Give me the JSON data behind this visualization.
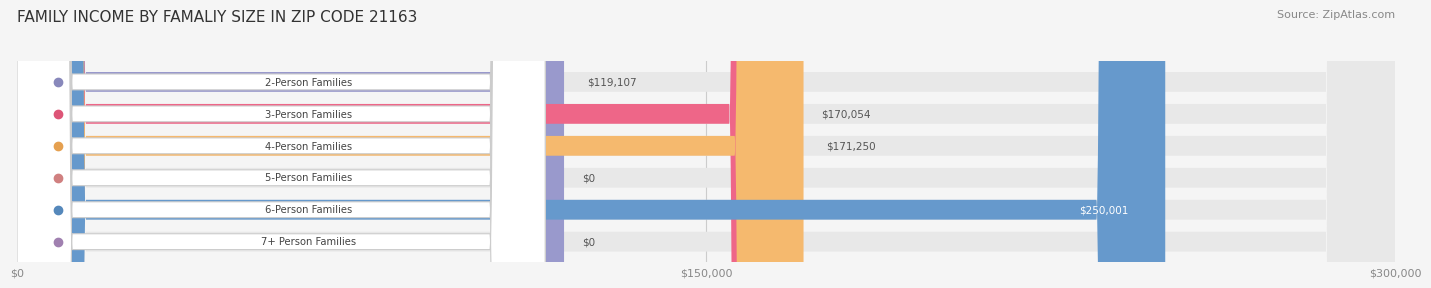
{
  "title": "FAMILY INCOME BY FAMALIY SIZE IN ZIP CODE 21163",
  "source": "Source: ZipAtlas.com",
  "categories": [
    "2-Person Families",
    "3-Person Families",
    "4-Person Families",
    "5-Person Families",
    "6-Person Families",
    "7+ Person Families"
  ],
  "values": [
    119107,
    170054,
    171250,
    0,
    250001,
    0
  ],
  "bar_colors": [
    "#9999cc",
    "#ee6688",
    "#f5b96e",
    "#f0a0a0",
    "#6699cc",
    "#c0a0c8"
  ],
  "label_colors": [
    "#8888bb",
    "#dd5577",
    "#e5a050",
    "#d08080",
    "#5588bb",
    "#a080b0"
  ],
  "value_labels": [
    "$119,107",
    "$170,054",
    "$171,250",
    "$0",
    "$250,001",
    "$0"
  ],
  "xlim": [
    0,
    300000
  ],
  "xticks": [
    0,
    150000,
    300000
  ],
  "xtick_labels": [
    "$0",
    "$150,000",
    "$300,000"
  ],
  "bg_color": "#f5f5f5",
  "bar_bg_color": "#e8e8e8",
  "title_fontsize": 11,
  "source_fontsize": 8,
  "bar_height": 0.62,
  "figsize": [
    14.06,
    3.05
  ]
}
